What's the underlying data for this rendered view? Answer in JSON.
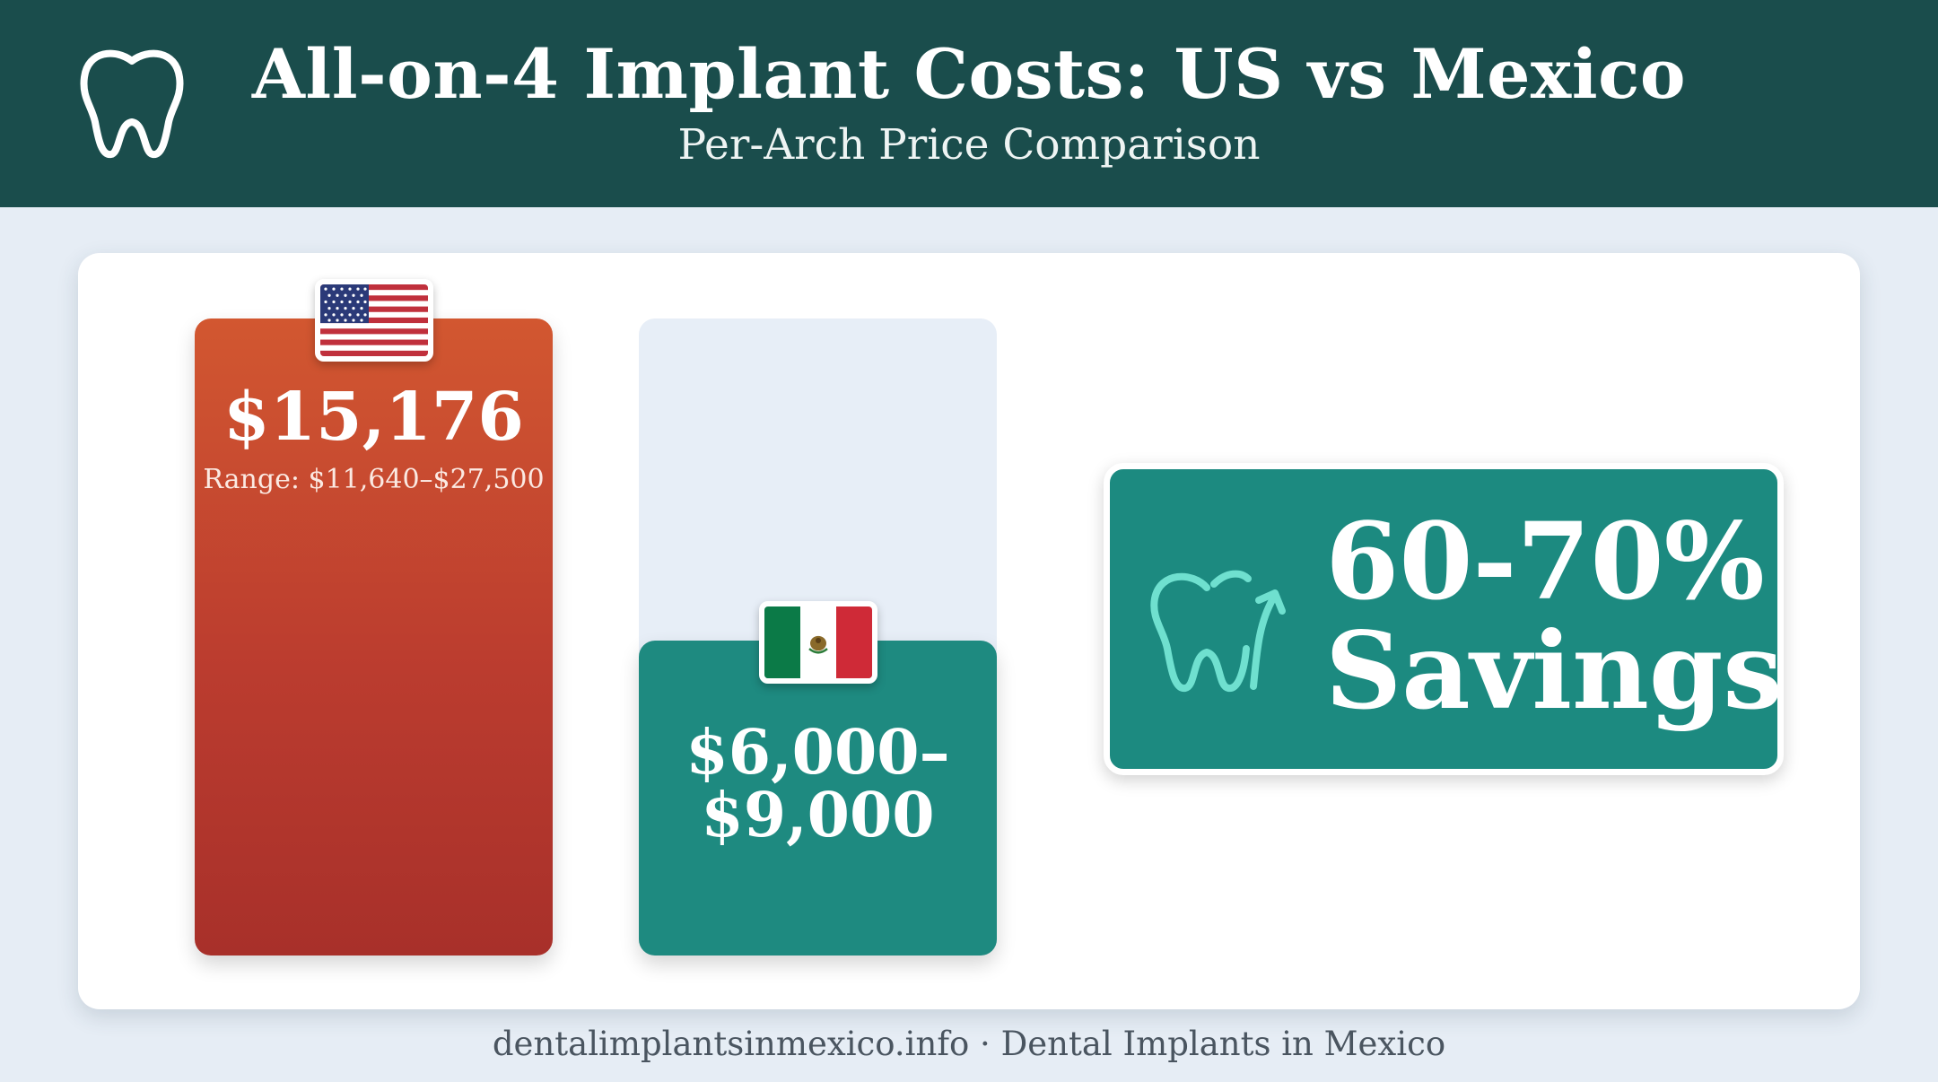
{
  "header": {
    "title": "All-on-4 Implant Costs: US vs Mexico",
    "subtitle": "Per-Arch Price Comparison",
    "logo_icon": "tooth-icon",
    "background_color": "#1a4d4c"
  },
  "chart_data": {
    "type": "bar",
    "title": "All-on-4 Implant Costs: US vs Mexico",
    "subtitle": "Per-Arch Price Comparison",
    "categories": [
      "US",
      "Mexico"
    ],
    "series": [
      {
        "values": [
          15176,
          7500
        ],
        "colors": [
          "#c8452e",
          "#1e8a80"
        ]
      }
    ],
    "ylim": [
      0,
      15176
    ],
    "grid": false,
    "legend": "none",
    "bars": [
      {
        "category": "US",
        "flag_icon": "us-flag-icon",
        "value_label": "$15,176",
        "range_label": "Range: $11,640–$27,500",
        "color": "#c8452e"
      },
      {
        "category": "Mexico",
        "flag_icon": "mexico-flag-icon",
        "value_label_line1": "$6,000–",
        "value_label_line2": "$9,000",
        "color": "#1e8a80"
      }
    ]
  },
  "savings": {
    "line1": "60-70%",
    "line2": "Savings",
    "icon": "tooth-arrow-up-icon",
    "color": "#1c8a80"
  },
  "footer": {
    "text": "dentalimplantsinmexico.info · Dental Implants in Mexico"
  }
}
